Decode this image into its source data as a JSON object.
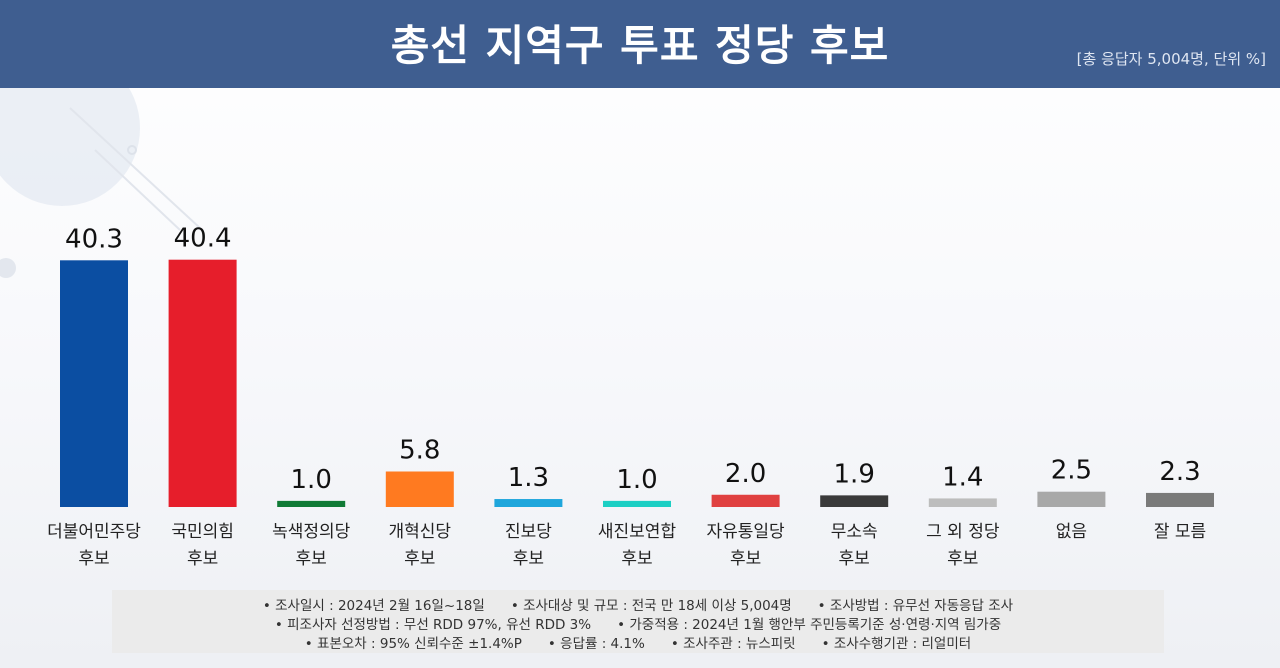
{
  "header": {
    "title": "총선 지역구 투표 정당 후보",
    "subtitle": "[총 응답자 5,004명, 단위 %]"
  },
  "colors": {
    "header_bg": "#3f5e90"
  },
  "chart_data": {
    "type": "bar",
    "title": "총선 지역구 투표 정당 후보",
    "unit": "%",
    "ylim": [
      0,
      45
    ],
    "grid": false,
    "legend": "none",
    "categories": [
      [
        "더불어민주당",
        "후보"
      ],
      [
        "국민의힘",
        "후보"
      ],
      [
        "녹색정의당",
        "후보"
      ],
      [
        "개혁신당",
        "후보"
      ],
      [
        "진보당",
        "후보"
      ],
      [
        "새진보연합",
        "후보"
      ],
      [
        "자유통일당",
        "후보"
      ],
      [
        "무소속",
        "후보"
      ],
      [
        "그 외 정당",
        "후보"
      ],
      [
        "없음"
      ],
      [
        "잘 모름"
      ]
    ],
    "values": [
      "40.3",
      "40.4",
      "1.0",
      "5.8",
      "1.3",
      "1.0",
      "2.0",
      "1.9",
      "1.4",
      "2.5",
      "2.3"
    ],
    "colors": [
      "#0b4ea2",
      "#e61e2b",
      "#107a36",
      "#ff7a20",
      "#1fa6dc",
      "#1ccfc4",
      "#e04040",
      "#3a3a3a",
      "#bdbdbd",
      "#a8a8a8",
      "#7a7a7a"
    ]
  },
  "footer": {
    "lines": [
      [
        "• 조사일시 : 2024년 2월 16일~18일",
        "• 조사대상 및 규모 : 전국 만 18세 이상 5,004명",
        "• 조사방법 : 유무선 자동응답 조사"
      ],
      [
        "• 피조사자 선정방법 : 무선 RDD 97%, 유선 RDD 3%",
        "• 가중적용 : 2024년 1월 행안부 주민등록기준 성·연령·지역 림가중"
      ],
      [
        "• 표본오차 : 95% 신뢰수준 ±1.4%P",
        "• 응답률 : 4.1%",
        "• 조사주관 : 뉴스피릿",
        "• 조사수행기관 : 리얼미터"
      ]
    ]
  }
}
